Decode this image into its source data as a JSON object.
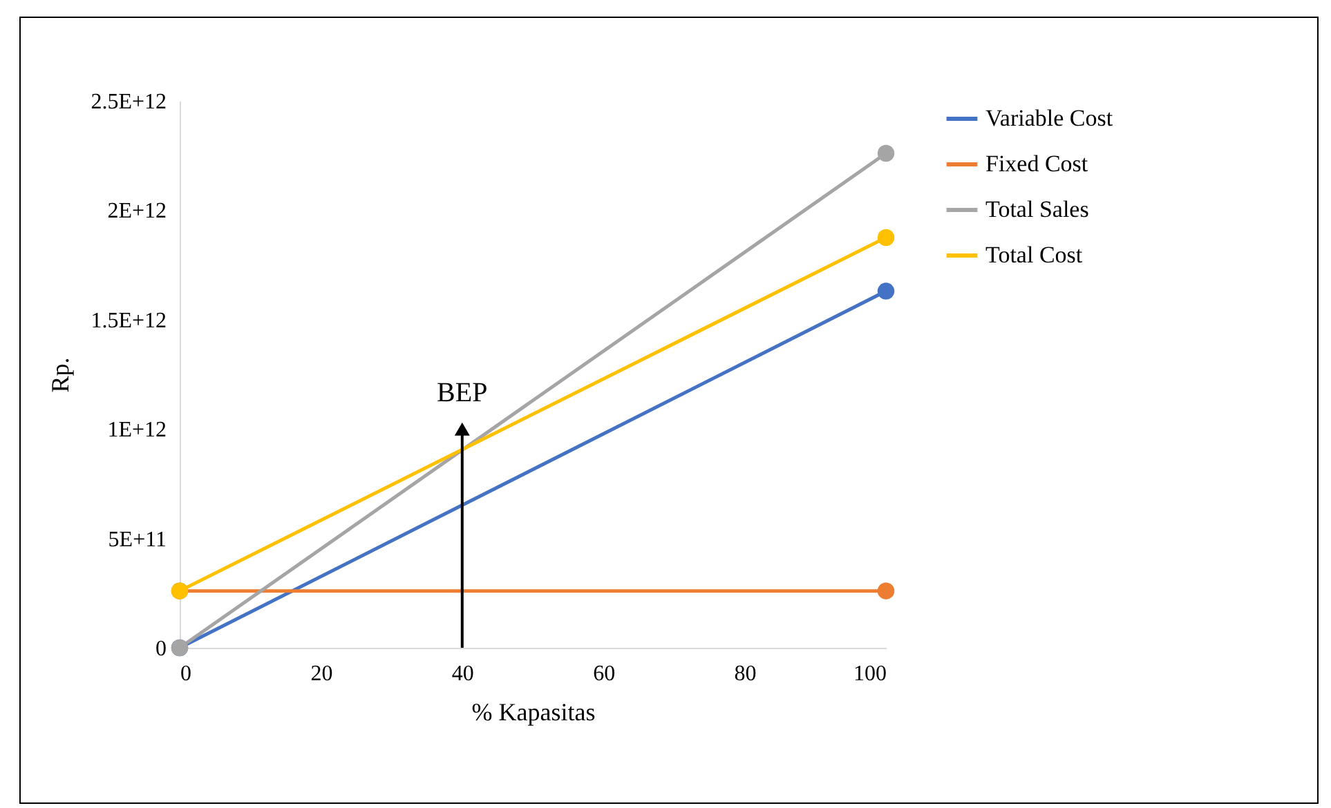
{
  "chart_data": {
    "type": "line",
    "xlabel": "% Kapasitas",
    "ylabel": "Rp.",
    "x": [
      0,
      100
    ],
    "series": [
      {
        "name": "Variable Cost",
        "color": "#4472c4",
        "values": [
          0,
          1630000000000.0
        ]
      },
      {
        "name": "Fixed Cost",
        "color": "#ed7d31",
        "values": [
          260000000000.0,
          260000000000.0
        ]
      },
      {
        "name": "Total Sales",
        "color": "#a5a5a5",
        "values": [
          0,
          2260000000000.0
        ]
      },
      {
        "name": "Total Cost",
        "color": "#ffc000",
        "values": [
          260000000000.0,
          1875000000000.0
        ]
      }
    ],
    "xlim": [
      0,
      100
    ],
    "xticks": [
      0,
      20,
      40,
      60,
      80,
      100
    ],
    "ylim": [
      0,
      2500000000000.0
    ],
    "yticks": [
      {
        "value": 0,
        "label": "0"
      },
      {
        "value": 500000000000.0,
        "label": "5E+11"
      },
      {
        "value": 1000000000000.0,
        "label": "1E+12"
      },
      {
        "value": 1500000000000.0,
        "label": "1.5E+12"
      },
      {
        "value": 2000000000000.0,
        "label": "2E+12"
      },
      {
        "value": 2500000000000.0,
        "label": "2.5E+12"
      }
    ],
    "annotations": [
      {
        "text": "BEP",
        "x": 40,
        "y": 1000000000000.0
      }
    ],
    "legend": "right",
    "marker": "circle",
    "line_style": "solid",
    "grid": false
  }
}
